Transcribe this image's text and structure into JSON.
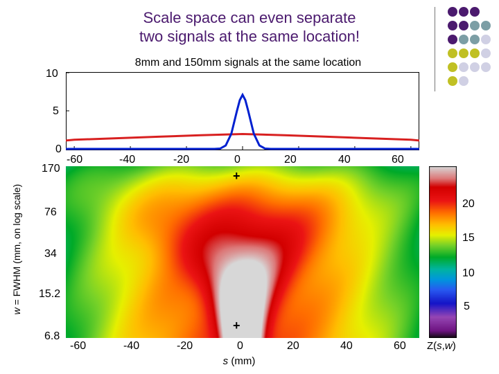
{
  "slide": {
    "title_line1": "Scale space can even separate",
    "title_line2": "two signals at the same location!",
    "deco_colors": [
      "#4b1a6e",
      "#7c9ea5",
      "#c0c024",
      "#d0d0e4"
    ]
  },
  "top_plot": {
    "title": "8mm and 150mm signals at the same location",
    "y_ticks": [
      "10",
      "5",
      "0"
    ],
    "x_ticks": [
      "-60",
      "-40",
      "-20",
      "0",
      "20",
      "40",
      "60"
    ]
  },
  "bottom_plot": {
    "ylabel_italic": "w",
    "ylabel_rest": " = FWHM (mm, on log scale)",
    "y_ticks": [
      "170",
      "76",
      "34",
      "15.2",
      "6.8"
    ],
    "x_ticks": [
      "-60",
      "-40",
      "-20",
      "0",
      "20",
      "40",
      "60"
    ],
    "xlabel_italic": "s",
    "xlabel_rest": " (mm)",
    "markers": [
      "+",
      "+"
    ]
  },
  "colorbar": {
    "ticks": [
      "20",
      "15",
      "10",
      "5"
    ],
    "label_prefix": "Z(",
    "label_s": "s",
    "label_comma": ",",
    "label_w": "w",
    "label_suffix": ")"
  },
  "colors": {
    "narrow_signal": "#0020d0",
    "wide_signal": "#d82020",
    "title": "#4b1a6e"
  },
  "chart_data": [
    {
      "type": "line",
      "title": "8mm and 150mm signals at the same location",
      "xlabel": "",
      "ylabel": "",
      "xlim": [
        -63,
        63
      ],
      "ylim": [
        0,
        10
      ],
      "x_ticks": [
        -60,
        -40,
        -20,
        0,
        20,
        40,
        60
      ],
      "y_ticks": [
        0,
        5,
        10
      ],
      "series": [
        {
          "color": "#0020d0",
          "x": [
            -63,
            -10,
            -8,
            -6,
            -4,
            -2,
            -1,
            0,
            1,
            2,
            4,
            6,
            8,
            10,
            63
          ],
          "y": [
            0,
            0,
            0.05,
            0.45,
            2.0,
            5.0,
            6.4,
            7.1,
            6.4,
            5.0,
            2.0,
            0.45,
            0.05,
            0,
            0
          ]
        },
        {
          "color": "#d82020",
          "x": [
            -63,
            -60,
            -45,
            -30,
            -15,
            0,
            15,
            30,
            45,
            60,
            63
          ],
          "y": [
            1.1,
            1.2,
            1.4,
            1.6,
            1.8,
            1.95,
            1.8,
            1.6,
            1.4,
            1.2,
            1.1
          ]
        }
      ]
    },
    {
      "type": "heatmap",
      "xlabel": "s (mm)",
      "ylabel": "w = FWHM (mm, on log scale)",
      "xlim": [
        -63,
        63
      ],
      "ylim": [
        6.8,
        170
      ],
      "y_scale": "log",
      "x_ticks": [
        -60,
        -40,
        -20,
        0,
        20,
        40,
        60
      ],
      "y_ticks": [
        6.8,
        15.2,
        34,
        76,
        170
      ],
      "colorbar_label": "Z(s,w)",
      "colorbar_ticks": [
        5,
        10,
        15,
        20
      ],
      "colorbar_range": [
        0,
        25
      ],
      "markers": [
        {
          "s": 0,
          "w": 160
        },
        {
          "s": 0,
          "w": 7.2
        }
      ]
    }
  ]
}
